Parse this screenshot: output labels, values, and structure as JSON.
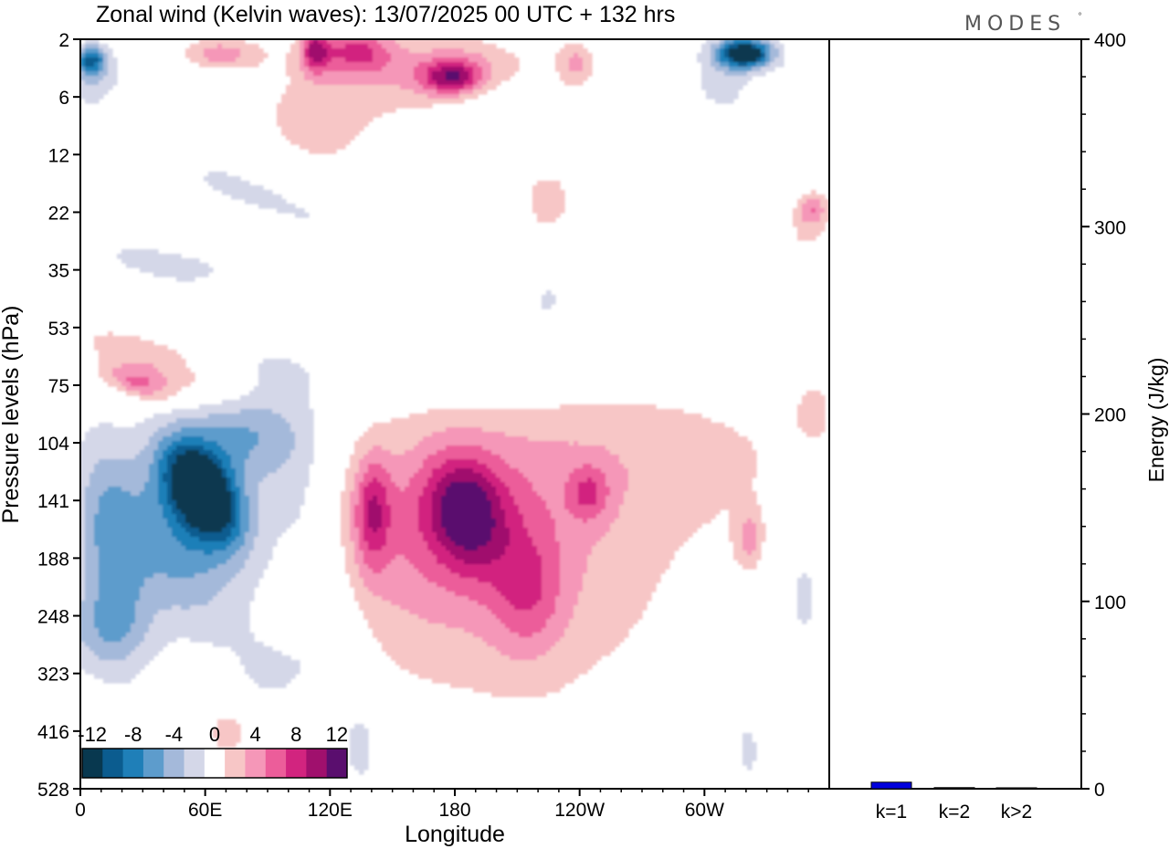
{
  "title": "Zonal wind (Kelvin waves):  13/07/2025  00 UTC  + 132 hrs",
  "logo": "MODES",
  "logo_mark": "°",
  "chart_data": [
    {
      "type": "heatmap",
      "title": "Zonal wind (Kelvin waves):  13/07/2025  00 UTC  + 132 hrs",
      "xlabel": "Longitude",
      "ylabel": "Pressure levels (hPa)",
      "x_ticks": [
        "0",
        "60E",
        "120E",
        "180",
        "120W",
        "60W"
      ],
      "x_tick_degrees": [
        0,
        60,
        120,
        180,
        240,
        300
      ],
      "xlim": [
        0,
        360
      ],
      "y_ticks": [
        "2",
        "6",
        "12",
        "22",
        "35",
        "53",
        "75",
        "104",
        "141",
        "188",
        "248",
        "323",
        "416",
        "528"
      ],
      "y_scale": "log",
      "ylim": [
        528,
        2
      ],
      "colorbar": {
        "labels": [
          "-12",
          "-8",
          "-4",
          "0",
          "4",
          "8",
          "12"
        ],
        "levels": [
          -14,
          -12,
          -10,
          -8,
          -6,
          -4,
          -2,
          2,
          4,
          6,
          8,
          10,
          12,
          14
        ],
        "colors": [
          "#08384f",
          "#0b5c8f",
          "#1f7fb8",
          "#5d9ccc",
          "#a4b9da",
          "#d4d7e8",
          "#ffffff",
          "#f7c6c6",
          "#f597b8",
          "#ec5d9a",
          "#d2247f",
          "#a0106d",
          "#5a0e6e"
        ]
      },
      "features": [
        {
          "sign": "negative",
          "lon": 62,
          "p": 145,
          "peak": -14
        },
        {
          "sign": "negative",
          "lon": 12,
          "p": 165,
          "peak": -8
        },
        {
          "sign": "negative",
          "lon": 315,
          "p": 2,
          "peak": -14
        },
        {
          "sign": "negative",
          "lon": 2,
          "p": 3,
          "peak": -8
        },
        {
          "sign": "positive",
          "lon": 183,
          "p": 145,
          "peak": 8
        },
        {
          "sign": "positive",
          "lon": 140,
          "p": 150,
          "peak": 6
        },
        {
          "sign": "positive",
          "lon": 240,
          "p": 135,
          "peak": 6
        },
        {
          "sign": "positive",
          "lon": 175,
          "p": 4,
          "peak": 8
        },
        {
          "sign": "positive",
          "lon": 135,
          "p": 2,
          "peak": 8
        },
        {
          "sign": "positive",
          "lon": 60,
          "p": 2,
          "peak": 6
        },
        {
          "sign": "positive",
          "lon": 30,
          "p": 75,
          "peak": 6
        }
      ]
    },
    {
      "type": "bar",
      "ylabel": "Energy (J/kg)",
      "categories": [
        "k=1",
        "k=2",
        "k>2"
      ],
      "values": [
        3.5,
        0.6,
        0.5
      ],
      "ylim": [
        0,
        400
      ],
      "y_ticks": [
        "0",
        "100",
        "200",
        "300",
        "400"
      ],
      "y_tick_values": [
        0,
        100,
        200,
        300,
        400
      ],
      "bar_colors": [
        "#0000dd",
        "#000000",
        "#000000"
      ]
    }
  ]
}
